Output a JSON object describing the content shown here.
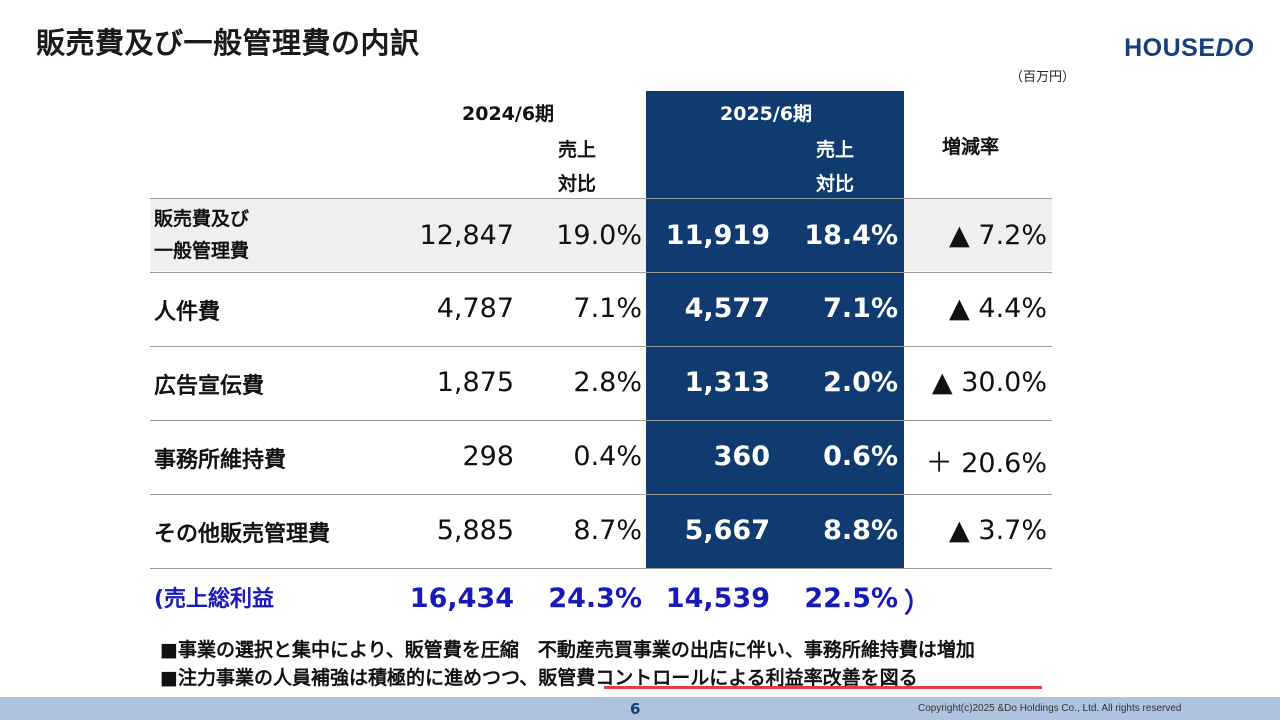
{
  "title": "販売費及び一般管理費の内訳",
  "logo": {
    "part1": "HOUSE",
    "part2": "DO"
  },
  "unit": "（百万円）",
  "headers": {
    "period_prev": "2024/6期",
    "ratio_prev_line1": "売上",
    "ratio_prev_line2": "対比",
    "period_curr": "2025/6期",
    "ratio_curr_line1": "売上",
    "ratio_curr_line2": "対比",
    "change": "増減率"
  },
  "rows": [
    {
      "label_line1": "販売費及び",
      "label_line2": "一般管理費",
      "prev": "12,847",
      "prev_ratio": "19.0%",
      "curr": "11,919",
      "curr_ratio": "18.4%",
      "change": "▲ 7.2%"
    },
    {
      "label": "人件費",
      "prev": "4,787",
      "prev_ratio": "7.1%",
      "curr": "4,577",
      "curr_ratio": "7.1%",
      "change": "▲ 4.4%"
    },
    {
      "label": "広告宣伝費",
      "prev": "1,875",
      "prev_ratio": "2.8%",
      "curr": "1,313",
      "curr_ratio": "2.0%",
      "change": "▲ 30.0%"
    },
    {
      "label": "事務所維持費",
      "prev": "298",
      "prev_ratio": "0.4%",
      "curr": "360",
      "curr_ratio": "0.6%",
      "change": "＋ 20.6%"
    },
    {
      "label": "その他販売管理費",
      "prev": "5,885",
      "prev_ratio": "8.7%",
      "curr": "5,667",
      "curr_ratio": "8.8%",
      "change": "▲ 3.7%"
    }
  ],
  "gross_profit": {
    "label": "(売上総利益",
    "prev": "16,434",
    "prev_ratio": "24.3%",
    "curr": "14,539",
    "curr_ratio": "22.5%",
    "close": "）"
  },
  "notes": [
    "■事業の選択と集中により、販管費を圧縮　不動産売買事業の出店に伴い、事務所維持費は増加",
    "■注力事業の人員補強は積極的に進めつつ、販管費コントロールによる利益率改善を図る"
  ],
  "footer": {
    "page": "6",
    "copyright": "Copyright(c)2025 &Do Holdings Co., Ltd. All rights reserved"
  },
  "colors": {
    "navy": "#0f3b70",
    "row_shade": "#efefef",
    "gross_profit_text": "#1a1ab8",
    "footer_band": "#aec3dd",
    "note_underline": "#e04040"
  }
}
